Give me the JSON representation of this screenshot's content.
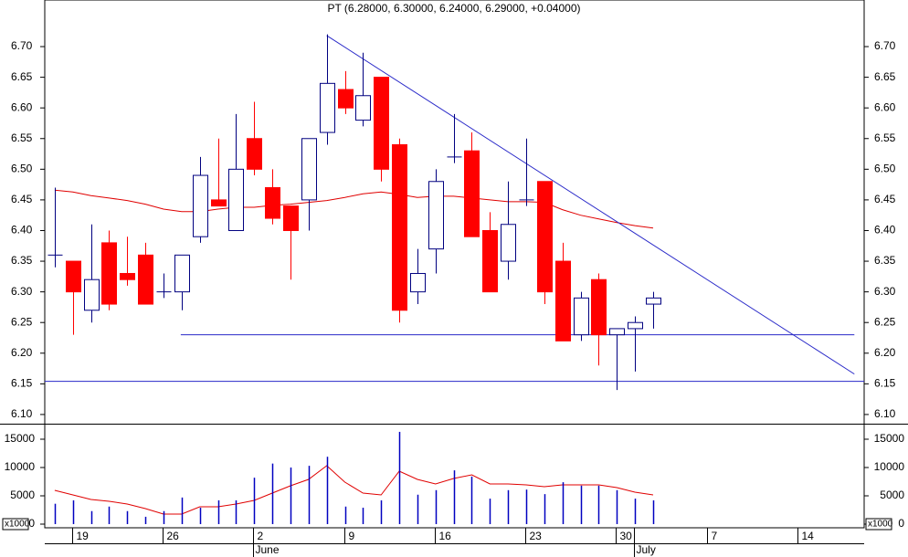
{
  "chart_data": {
    "type": "candlestick",
    "title": "PT (6.28000, 6.30000, 6.24000, 6.29000, +0.04000)",
    "open": [
      6.36,
      6.35,
      6.27,
      6.38,
      6.33,
      6.36,
      6.3,
      6.3,
      6.39,
      6.45,
      6.4,
      6.55,
      6.47,
      6.44,
      6.45,
      6.56,
      6.63,
      6.58,
      6.65,
      6.54,
      6.3,
      6.37,
      6.52,
      6.53,
      6.4,
      6.35,
      6.45,
      6.48,
      6.35,
      6.23,
      6.32,
      6.23,
      6.24,
      6.28
    ],
    "high": [
      6.47,
      6.35,
      6.41,
      6.4,
      6.39,
      6.38,
      6.33,
      6.36,
      6.52,
      6.55,
      6.59,
      6.61,
      6.5,
      6.44,
      6.55,
      6.72,
      6.66,
      6.69,
      6.65,
      6.55,
      6.37,
      6.5,
      6.59,
      6.56,
      6.43,
      6.48,
      6.55,
      6.48,
      6.38,
      6.3,
      6.33,
      6.24,
      6.26,
      6.3
    ],
    "low": [
      6.34,
      6.23,
      6.25,
      6.27,
      6.31,
      6.28,
      6.29,
      6.27,
      6.38,
      6.44,
      6.4,
      6.49,
      6.41,
      6.32,
      6.4,
      6.54,
      6.59,
      6.57,
      6.48,
      6.25,
      6.28,
      6.33,
      6.51,
      6.39,
      6.3,
      6.32,
      6.44,
      6.28,
      6.22,
      6.22,
      6.18,
      6.14,
      6.17,
      6.24
    ],
    "close": [
      6.36,
      6.3,
      6.32,
      6.28,
      6.32,
      6.28,
      6.3,
      6.36,
      6.49,
      6.44,
      6.5,
      6.5,
      6.42,
      6.4,
      6.55,
      6.64,
      6.6,
      6.62,
      6.5,
      6.27,
      6.33,
      6.48,
      6.52,
      6.39,
      6.3,
      6.41,
      6.45,
      6.3,
      6.22,
      6.29,
      6.23,
      6.24,
      6.25,
      6.29
    ],
    "up_color": "#ffffff",
    "down_color": "#ff0000",
    "outline_color": "#000080",
    "moving_average": {
      "color": "#e00000",
      "values": [
        6.466,
        6.463,
        6.457,
        6.453,
        6.449,
        6.443,
        6.435,
        6.431,
        6.431,
        6.435,
        6.438,
        6.438,
        6.441,
        6.443,
        6.446,
        6.449,
        6.454,
        6.46,
        6.463,
        6.459,
        6.454,
        6.456,
        6.456,
        6.453,
        6.45,
        6.447,
        6.447,
        6.446,
        6.434,
        6.425,
        6.419,
        6.413,
        6.408,
        6.404
      ]
    },
    "trend_lines": [
      {
        "color": "#2828c8",
        "x": [
          15,
          44.1
        ],
        "y": [
          6.718,
          6.166
        ]
      },
      {
        "color": "#2828c8",
        "x": [
          6.95,
          44.1
        ],
        "y": [
          6.23,
          6.23
        ]
      },
      {
        "color": "#2828c8",
        "x": [
          -0.55,
          44.64
        ],
        "y": [
          6.154,
          6.154
        ]
      }
    ],
    "xlim": [
      -0.55,
      44.64
    ],
    "ylim": [
      6.085,
      6.776
    ],
    "yticks": [
      {
        "value": 6.1,
        "label": "6.10"
      },
      6.15,
      {
        "value": 6.2,
        "label": "6.20"
      },
      6.25,
      {
        "value": 6.3,
        "label": "6.30"
      },
      6.35,
      {
        "value": 6.4,
        "label": "6.40"
      },
      6.45,
      {
        "value": 6.5,
        "label": "6.50"
      },
      6.55,
      {
        "value": 6.6,
        "label": "6.60"
      },
      6.65,
      {
        "value": 6.7,
        "label": "6.70"
      }
    ],
    "xticks": [
      {
        "value": 1,
        "label": "19"
      },
      {
        "value": 6,
        "label": "26"
      },
      {
        "value": 11,
        "label": "2"
      },
      {
        "value": 16,
        "label": "9"
      },
      {
        "value": 21,
        "label": "16"
      },
      {
        "value": 26,
        "label": "23"
      },
      {
        "value": 31,
        "label": "30"
      },
      {
        "value": 36,
        "label": "7"
      },
      {
        "value": 41,
        "label": "14"
      }
    ],
    "month_ticks": [
      {
        "value": 11,
        "label": "June"
      },
      {
        "value": 32,
        "label": "July"
      }
    ],
    "volume": {
      "color": "#0000c0",
      "values": [
        3600,
        4200,
        2300,
        3100,
        2300,
        1300,
        2300,
        4700,
        2900,
        4200,
        4200,
        8200,
        10700,
        10000,
        10300,
        11900,
        3100,
        2900,
        4200,
        16300,
        5200,
        6000,
        9500,
        8400,
        4500,
        6000,
        6100,
        5300,
        7400,
        6800,
        6800,
        6000,
        4500,
        4200
      ],
      "moving_average": {
        "color": "#e00000",
        "values": [
          5970,
          5160,
          4350,
          4030,
          3550,
          2740,
          1770,
          1770,
          3060,
          3060,
          3550,
          4190,
          5480,
          6770,
          7900,
          10320,
          7420,
          5480,
          5160,
          9350,
          7900,
          7100,
          8060,
          8710,
          7100,
          7100,
          6940,
          6610,
          6940,
          6940,
          6940,
          6450,
          5650,
          5160
        ]
      },
      "ylim": [
        -645,
        17581
      ],
      "yticks": [
        0,
        5000,
        10000,
        15000
      ],
      "unit_label": "x1000"
    }
  }
}
